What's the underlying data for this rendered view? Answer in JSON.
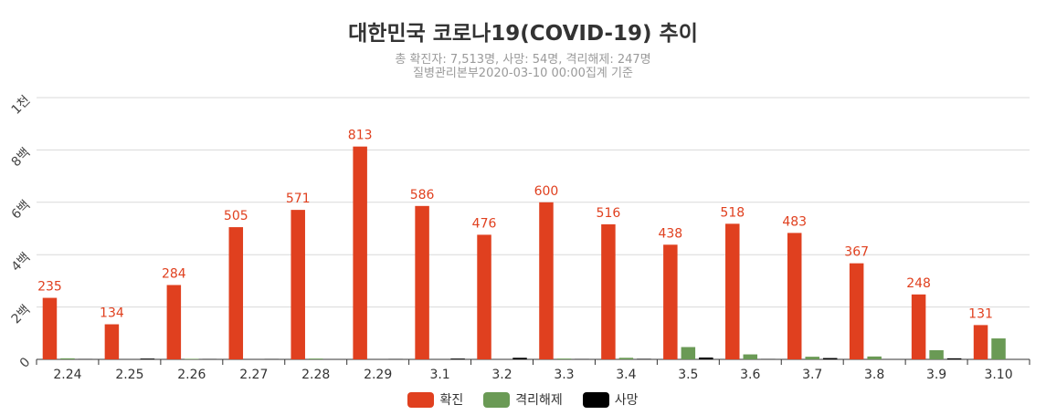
{
  "chart_data": {
    "type": "bar",
    "title": "대한민국 코로나19(COVID-19) 추이",
    "subtitle_lines": [
      "총 확진자: 7,513명, 사망: 54명, 격리해제: 247명",
      "질병관리본부2020-03-10 00:00집계 기준"
    ],
    "categories": [
      "2.24",
      "2.25",
      "2.26",
      "2.27",
      "2.28",
      "2.29",
      "3.1",
      "3.2",
      "3.3",
      "3.4",
      "3.5",
      "3.6",
      "3.7",
      "3.8",
      "3.9",
      "3.10"
    ],
    "y_ticks": [
      {
        "value": 0,
        "label": "0"
      },
      {
        "value": 200,
        "label": "2백"
      },
      {
        "value": 400,
        "label": "4백"
      },
      {
        "value": 600,
        "label": "6백"
      },
      {
        "value": 800,
        "label": "8백"
      },
      {
        "value": 1000,
        "label": "1천"
      }
    ],
    "ylim": [
      0,
      1000
    ],
    "grid": true,
    "legend_position": "bottom-center",
    "series": [
      {
        "name": "확진",
        "color": "#e0401f",
        "show_labels": true,
        "values": [
          235,
          134,
          284,
          505,
          571,
          813,
          586,
          476,
          600,
          516,
          438,
          518,
          483,
          367,
          248,
          131
        ]
      },
      {
        "name": "격리해제",
        "color": "#6a9a55",
        "show_labels": false,
        "values": [
          4,
          0,
          2,
          0,
          3,
          0,
          0,
          0,
          3,
          6,
          47,
          19,
          10,
          11,
          35,
          80
        ]
      },
      {
        "name": "사망",
        "color": "#000000",
        "show_labels": false,
        "values": [
          1,
          3,
          1,
          1,
          0,
          1,
          3,
          6,
          1,
          2,
          7,
          1,
          5,
          0,
          4,
          0
        ]
      }
    ]
  }
}
